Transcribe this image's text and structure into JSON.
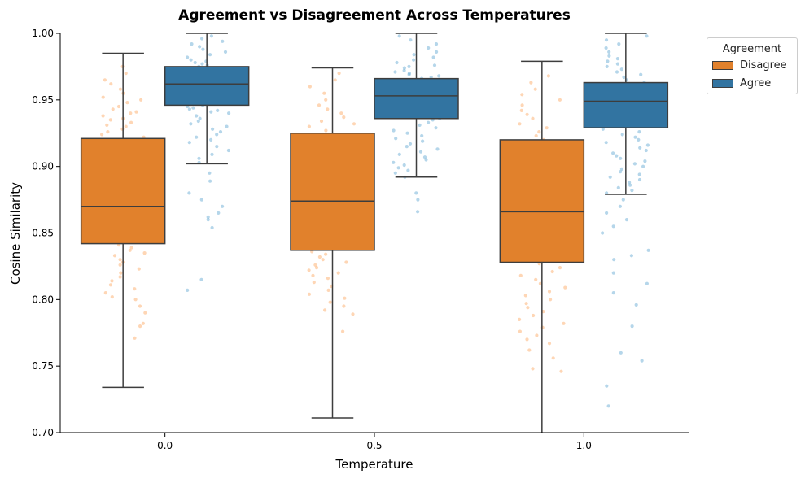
{
  "chart_data": {
    "type": "box",
    "title": "Agreement vs Disagreement Across Temperatures",
    "xlabel": "Temperature",
    "ylabel": "Cosine Similarity",
    "categories": [
      "0.0",
      "0.5",
      "1.0"
    ],
    "ylim": [
      0.7,
      1.0
    ],
    "yticks": [
      "0.70",
      "0.75",
      "0.80",
      "0.85",
      "0.90",
      "0.95",
      "1.00"
    ],
    "legend": {
      "title": "Agreement",
      "position": "upper-right-outside",
      "entries": [
        {
          "label": "Disagree",
          "color": "#e1812c"
        },
        {
          "label": "Agree",
          "color": "#3274a1"
        }
      ]
    },
    "series": [
      {
        "name": "Disagree",
        "color": "#e1812c",
        "point_color": "#fdae6b",
        "boxes": [
          {
            "whisker_low": 0.734,
            "q1": 0.842,
            "median": 0.87,
            "q3": 0.921,
            "whisker_high": 0.985
          },
          {
            "whisker_low": 0.711,
            "q1": 0.837,
            "median": 0.874,
            "q3": 0.925,
            "whisker_high": 0.974
          },
          {
            "whisker_low": 0.695,
            "q1": 0.828,
            "median": 0.866,
            "q3": 0.92,
            "whisker_high": 0.979
          }
        ],
        "points": [
          [
            0.975,
            0.97,
            0.965,
            0.962,
            0.958,
            0.955,
            0.952,
            0.95,
            0.948,
            0.945,
            0.943,
            0.941,
            0.94,
            0.938,
            0.936,
            0.935,
            0.933,
            0.931,
            0.93,
            0.928,
            0.926,
            0.924,
            0.922,
            0.92,
            0.918,
            0.915,
            0.912,
            0.91,
            0.907,
            0.904,
            0.902,
            0.899,
            0.896,
            0.893,
            0.891,
            0.889,
            0.886,
            0.884,
            0.881,
            0.879,
            0.876,
            0.874,
            0.872,
            0.87,
            0.868,
            0.866,
            0.864,
            0.861,
            0.859,
            0.857,
            0.855,
            0.853,
            0.851,
            0.849,
            0.847,
            0.845,
            0.843,
            0.841,
            0.839,
            0.837,
            0.835,
            0.833,
            0.83,
            0.828,
            0.826,
            0.823,
            0.82,
            0.817,
            0.814,
            0.811,
            0.808,
            0.805,
            0.802,
            0.8,
            0.795,
            0.79,
            0.782,
            0.78,
            0.771
          ],
          [
            0.97,
            0.965,
            0.96,
            0.955,
            0.95,
            0.946,
            0.943,
            0.94,
            0.937,
            0.934,
            0.932,
            0.93,
            0.927,
            0.924,
            0.922,
            0.919,
            0.916,
            0.913,
            0.91,
            0.907,
            0.904,
            0.901,
            0.898,
            0.895,
            0.892,
            0.889,
            0.886,
            0.883,
            0.88,
            0.877,
            0.874,
            0.872,
            0.869,
            0.866,
            0.863,
            0.86,
            0.858,
            0.855,
            0.852,
            0.85,
            0.848,
            0.845,
            0.842,
            0.84,
            0.838,
            0.836,
            0.834,
            0.832,
            0.83,
            0.828,
            0.826,
            0.824,
            0.822,
            0.82,
            0.818,
            0.816,
            0.813,
            0.81,
            0.807,
            0.804,
            0.801,
            0.798,
            0.795,
            0.792,
            0.789,
            0.776
          ],
          [
            0.968,
            0.963,
            0.958,
            0.954,
            0.95,
            0.946,
            0.942,
            0.939,
            0.936,
            0.932,
            0.929,
            0.926,
            0.923,
            0.92,
            0.917,
            0.914,
            0.911,
            0.908,
            0.905,
            0.902,
            0.899,
            0.896,
            0.893,
            0.89,
            0.887,
            0.884,
            0.881,
            0.878,
            0.875,
            0.872,
            0.869,
            0.866,
            0.863,
            0.86,
            0.857,
            0.854,
            0.851,
            0.848,
            0.845,
            0.842,
            0.839,
            0.836,
            0.833,
            0.83,
            0.827,
            0.824,
            0.821,
            0.818,
            0.815,
            0.812,
            0.809,
            0.806,
            0.803,
            0.8,
            0.797,
            0.794,
            0.791,
            0.788,
            0.785,
            0.782,
            0.779,
            0.776,
            0.773,
            0.77,
            0.767,
            0.762,
            0.756,
            0.748,
            0.746
          ]
        ]
      },
      {
        "name": "Agree",
        "color": "#3274a1",
        "point_color": "#6baed6",
        "boxes": [
          {
            "whisker_low": 0.902,
            "q1": 0.946,
            "median": 0.962,
            "q3": 0.975,
            "whisker_high": 1.0
          },
          {
            "whisker_low": 0.892,
            "q1": 0.936,
            "median": 0.953,
            "q3": 0.966,
            "whisker_high": 1.0
          },
          {
            "whisker_low": 0.879,
            "q1": 0.929,
            "median": 0.949,
            "q3": 0.963,
            "whisker_high": 1.0
          }
        ],
        "points": [
          [
            0.998,
            0.996,
            0.994,
            0.992,
            0.99,
            0.988,
            0.986,
            0.984,
            0.982,
            0.98,
            0.979,
            0.978,
            0.977,
            0.976,
            0.975,
            0.974,
            0.973,
            0.972,
            0.971,
            0.97,
            0.969,
            0.968,
            0.967,
            0.966,
            0.965,
            0.964,
            0.963,
            0.962,
            0.961,
            0.96,
            0.959,
            0.958,
            0.957,
            0.956,
            0.955,
            0.954,
            0.953,
            0.952,
            0.951,
            0.95,
            0.949,
            0.948,
            0.947,
            0.946,
            0.945,
            0.944,
            0.943,
            0.942,
            0.941,
            0.94,
            0.938,
            0.936,
            0.934,
            0.932,
            0.93,
            0.928,
            0.926,
            0.924,
            0.922,
            0.92,
            0.918,
            0.915,
            0.912,
            0.909,
            0.906,
            0.903,
            0.895,
            0.889,
            0.88,
            0.875,
            0.87,
            0.865,
            0.862,
            0.86,
            0.854,
            0.815,
            0.807
          ],
          [
            0.998,
            0.995,
            0.992,
            0.989,
            0.986,
            0.984,
            0.982,
            0.98,
            0.978,
            0.976,
            0.975,
            0.974,
            0.972,
            0.971,
            0.97,
            0.969,
            0.968,
            0.967,
            0.966,
            0.965,
            0.964,
            0.963,
            0.962,
            0.961,
            0.96,
            0.959,
            0.958,
            0.957,
            0.956,
            0.955,
            0.954,
            0.953,
            0.952,
            0.951,
            0.95,
            0.949,
            0.948,
            0.947,
            0.946,
            0.945,
            0.944,
            0.943,
            0.942,
            0.941,
            0.94,
            0.939,
            0.938,
            0.937,
            0.936,
            0.935,
            0.933,
            0.931,
            0.929,
            0.927,
            0.925,
            0.923,
            0.921,
            0.919,
            0.917,
            0.915,
            0.913,
            0.911,
            0.909,
            0.907,
            0.905,
            0.903,
            0.901,
            0.899,
            0.897,
            0.895,
            0.892,
            0.88,
            0.875,
            0.866
          ],
          [
            0.998,
            0.995,
            0.992,
            0.989,
            0.986,
            0.983,
            0.981,
            0.979,
            0.977,
            0.975,
            0.973,
            0.971,
            0.969,
            0.967,
            0.965,
            0.963,
            0.962,
            0.961,
            0.96,
            0.959,
            0.958,
            0.957,
            0.956,
            0.955,
            0.954,
            0.953,
            0.952,
            0.951,
            0.95,
            0.949,
            0.948,
            0.947,
            0.946,
            0.945,
            0.944,
            0.943,
            0.942,
            0.941,
            0.94,
            0.939,
            0.938,
            0.937,
            0.936,
            0.935,
            0.934,
            0.933,
            0.932,
            0.931,
            0.93,
            0.928,
            0.926,
            0.924,
            0.922,
            0.92,
            0.918,
            0.916,
            0.914,
            0.912,
            0.91,
            0.908,
            0.906,
            0.904,
            0.902,
            0.9,
            0.898,
            0.896,
            0.894,
            0.892,
            0.89,
            0.888,
            0.886,
            0.884,
            0.882,
            0.88,
            0.875,
            0.87,
            0.865,
            0.86,
            0.855,
            0.85,
            0.837,
            0.833,
            0.83,
            0.82,
            0.812,
            0.805,
            0.796,
            0.78,
            0.76,
            0.754,
            0.735,
            0.72
          ]
        ]
      }
    ]
  }
}
